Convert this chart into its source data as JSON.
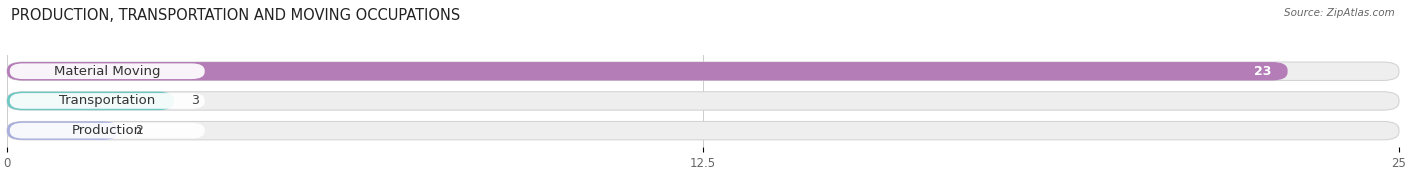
{
  "title": "PRODUCTION, TRANSPORTATION AND MOVING OCCUPATIONS",
  "source": "Source: ZipAtlas.com",
  "categories": [
    "Material Moving",
    "Transportation",
    "Production"
  ],
  "values": [
    23,
    3,
    2
  ],
  "bar_colors": [
    "#b57db8",
    "#6dc8c4",
    "#a8aede"
  ],
  "xlim": [
    0,
    25
  ],
  "xticks": [
    0,
    12.5,
    25
  ],
  "background_color": "#ffffff",
  "bar_bg_color": "#eeeeee",
  "title_fontsize": 10.5,
  "label_fontsize": 9.5,
  "value_fontsize": 9
}
